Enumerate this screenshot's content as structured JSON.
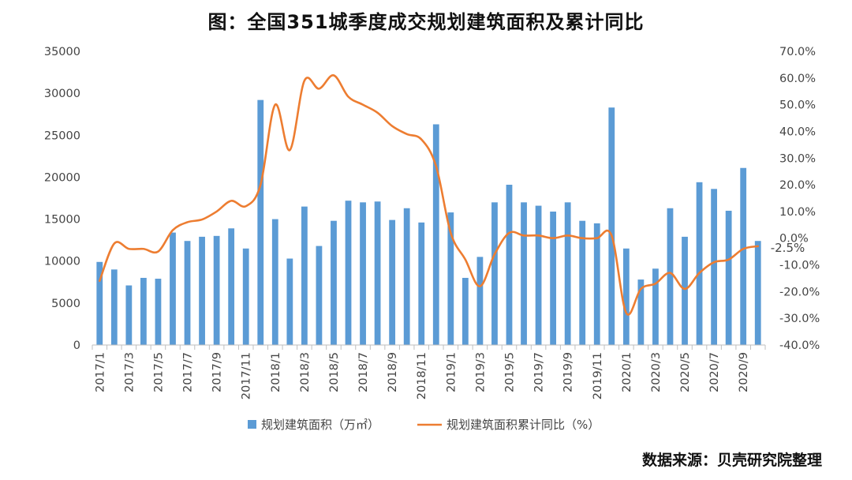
{
  "title": "图：全国351城季度成交规划建筑面积及累计同比",
  "source": "数据来源：贝壳研究院整理",
  "colors": {
    "bar": "#5b9bd5",
    "line": "#ed7d31",
    "axis": "#bfbfbf"
  },
  "chart_data": {
    "type": "bar+line",
    "categories": [
      "2017/1",
      "2017/2",
      "2017/3",
      "2017/4",
      "2017/5",
      "2017/6",
      "2017/7",
      "2017/8",
      "2017/9",
      "2017/10",
      "2017/11",
      "2017/12",
      "2018/1",
      "2018/2",
      "2018/3",
      "2018/4",
      "2018/5",
      "2018/6",
      "2018/7",
      "2018/8",
      "2018/9",
      "2018/10",
      "2018/11",
      "2018/12",
      "2019/1",
      "2019/2",
      "2019/3",
      "2019/4",
      "2019/5",
      "2019/6",
      "2019/7",
      "2019/8",
      "2019/9",
      "2019/10",
      "2019/11",
      "2019/12",
      "2020/1",
      "2020/2",
      "2020/3",
      "2020/4",
      "2020/5",
      "2020/6",
      "2020/7",
      "2020/8",
      "2020/9",
      "2020/10"
    ],
    "x_tick_labels": [
      "2017/1",
      "2017/3",
      "2017/5",
      "2017/7",
      "2017/9",
      "2017/11",
      "2018/1",
      "2018/3",
      "2018/5",
      "2018/7",
      "2018/9",
      "2018/11",
      "2019/1",
      "2019/3",
      "2019/5",
      "2019/7",
      "2019/9",
      "2019/11",
      "2020/1",
      "2020/3",
      "2020/5",
      "2020/7",
      "2020/9"
    ],
    "series": [
      {
        "name": "规划建筑面积（万㎡）",
        "type": "bar",
        "axis": "left",
        "values": [
          9900,
          9000,
          7100,
          8000,
          7900,
          13400,
          12400,
          12900,
          13000,
          13900,
          11500,
          29200,
          15000,
          10300,
          16500,
          11800,
          14800,
          17200,
          17000,
          17100,
          14900,
          16300,
          14600,
          26300,
          15800,
          8000,
          10500,
          17000,
          19100,
          17000,
          16600,
          15900,
          17000,
          14800,
          14500,
          28300,
          11500,
          7800,
          9100,
          16300,
          12900,
          19400,
          18600,
          16000,
          21100,
          12400
        ]
      },
      {
        "name": "规划建筑面积累计同比（%）",
        "type": "line",
        "axis": "right",
        "values": [
          -16,
          -2,
          -4,
          -4,
          -5,
          3,
          6,
          7,
          10,
          14,
          12,
          20,
          50,
          33,
          59,
          56,
          61,
          53,
          50,
          47,
          42,
          39,
          37,
          27,
          2,
          -8,
          -18,
          -6,
          2,
          1,
          1,
          0,
          1,
          0,
          0,
          1,
          -28,
          -19,
          -17,
          -13,
          -19,
          -13,
          -9,
          -8,
          -4,
          -3
        ]
      }
    ],
    "left_axis": {
      "min": 0,
      "max": 35000,
      "step": 5000,
      "labels": [
        "0",
        "5000",
        "10000",
        "15000",
        "20000",
        "25000",
        "30000",
        "35000"
      ]
    },
    "right_axis": {
      "min": -40,
      "max": 70,
      "step": 10,
      "labels": [
        "-40.0%",
        "-30.0%",
        "-20.0%",
        "-10.0%",
        "0.0%",
        "10.0%",
        "20.0%",
        "30.0%",
        "40.0%",
        "50.0%",
        "60.0%",
        "70.0%"
      ]
    },
    "annotation": "-2.5%",
    "legend_position": "bottom",
    "grid": false
  }
}
